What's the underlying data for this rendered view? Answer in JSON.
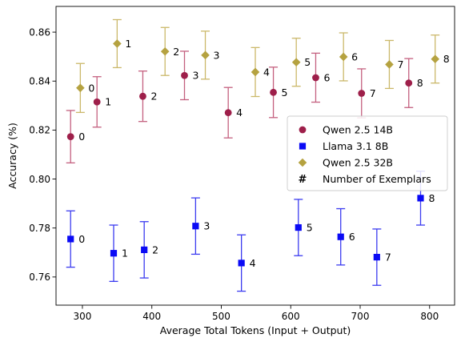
{
  "chart_data": {
    "type": "scatter",
    "xlabel": "Average Total Tokens (Input + Output)",
    "ylabel": "Accuracy (%)",
    "xlim": [
      262,
      836
    ],
    "ylim": [
      0.7485,
      0.8705
    ],
    "xticks": [
      300,
      400,
      500,
      600,
      700,
      800
    ],
    "yticks": [
      0.76,
      0.78,
      0.8,
      0.82,
      0.84,
      0.86
    ],
    "yticklabels": [
      "0.76",
      "0.78",
      "0.80",
      "0.82",
      "0.84",
      "0.86"
    ],
    "grid": false,
    "legend_position": "center-right",
    "series": [
      {
        "name": "Qwen 2.5 14B",
        "marker": "circle",
        "color": "#9e1f4a",
        "error_color": "#c4607f",
        "points": [
          {
            "x": 283,
            "y": 0.8173,
            "err": 0.0107,
            "label": "0"
          },
          {
            "x": 321,
            "y": 0.8315,
            "err": 0.0103,
            "label": "1"
          },
          {
            "x": 387,
            "y": 0.8338,
            "err": 0.0103,
            "label": "2"
          },
          {
            "x": 447,
            "y": 0.8423,
            "err": 0.0099,
            "label": "3"
          },
          {
            "x": 510,
            "y": 0.8271,
            "err": 0.0103,
            "label": "4"
          },
          {
            "x": 575,
            "y": 0.8354,
            "err": 0.0103,
            "label": "5"
          },
          {
            "x": 636,
            "y": 0.8414,
            "err": 0.01,
            "label": "6"
          },
          {
            "x": 702,
            "y": 0.835,
            "err": 0.01,
            "label": "7"
          },
          {
            "x": 770,
            "y": 0.8392,
            "err": 0.01,
            "label": "8"
          }
        ]
      },
      {
        "name": "Llama 3.1 8B",
        "marker": "square",
        "color": "#0a0af5",
        "error_color": "#3c3cf0",
        "points": [
          {
            "x": 283,
            "y": 0.7755,
            "err": 0.0115,
            "label": "0"
          },
          {
            "x": 345,
            "y": 0.7697,
            "err": 0.0115,
            "label": "1"
          },
          {
            "x": 389,
            "y": 0.7711,
            "err": 0.0115,
            "label": "2"
          },
          {
            "x": 463,
            "y": 0.7808,
            "err": 0.0115,
            "label": "3"
          },
          {
            "x": 529,
            "y": 0.7657,
            "err": 0.0115,
            "label": "4"
          },
          {
            "x": 611,
            "y": 0.7802,
            "err": 0.0115,
            "label": "5"
          },
          {
            "x": 672,
            "y": 0.7764,
            "err": 0.0115,
            "label": "6"
          },
          {
            "x": 724,
            "y": 0.7681,
            "err": 0.0115,
            "label": "7"
          },
          {
            "x": 787,
            "y": 0.7922,
            "err": 0.011,
            "label": "8"
          }
        ]
      },
      {
        "name": "Qwen 2.5 32B",
        "marker": "diamond",
        "color": "#b5a240",
        "error_color": "#cbb86a",
        "points": [
          {
            "x": 297,
            "y": 0.8372,
            "err": 0.01,
            "label": "0"
          },
          {
            "x": 350,
            "y": 0.8553,
            "err": 0.0098,
            "label": "1"
          },
          {
            "x": 419,
            "y": 0.8521,
            "err": 0.0098,
            "label": "2"
          },
          {
            "x": 477,
            "y": 0.8506,
            "err": 0.0098,
            "label": "3"
          },
          {
            "x": 549,
            "y": 0.8437,
            "err": 0.01,
            "label": "4"
          },
          {
            "x": 608,
            "y": 0.8477,
            "err": 0.0098,
            "label": "5"
          },
          {
            "x": 676,
            "y": 0.8499,
            "err": 0.0098,
            "label": "6"
          },
          {
            "x": 742,
            "y": 0.8468,
            "err": 0.0098,
            "label": "7"
          },
          {
            "x": 808,
            "y": 0.849,
            "err": 0.0098,
            "label": "8"
          }
        ]
      }
    ],
    "legend": [
      {
        "label": "Qwen 2.5 14B",
        "marker": "circle",
        "color": "#9e1f4a"
      },
      {
        "label": "Llama 3.1 8B",
        "marker": "square",
        "color": "#0a0af5"
      },
      {
        "label": "Qwen 2.5 32B",
        "marker": "diamond",
        "color": "#b5a240"
      },
      {
        "label": "Number of Exemplars",
        "marker": "#",
        "color": "#000000"
      }
    ]
  }
}
